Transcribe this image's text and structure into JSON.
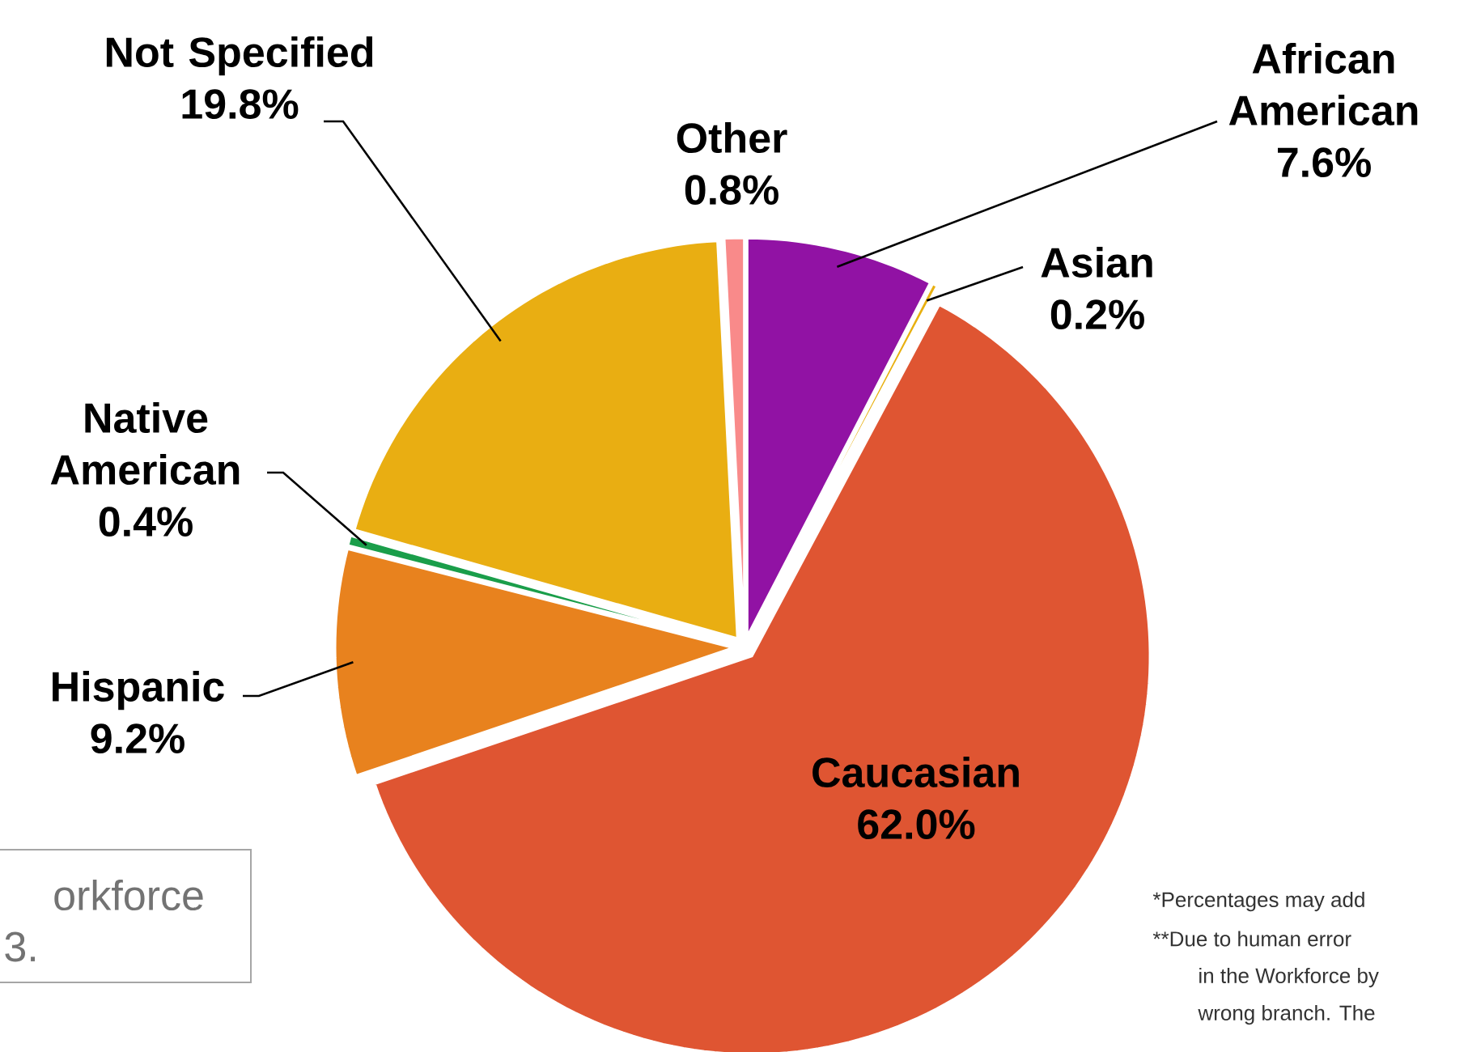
{
  "chart_data": {
    "type": "pie",
    "categories": [
      "African American",
      "Asian",
      "Caucasian",
      "Hispanic",
      "Native American",
      "Not Specified",
      "Other"
    ],
    "values": [
      7.6,
      0.2,
      62.0,
      9.2,
      0.4,
      19.8,
      0.8
    ],
    "value_labels": [
      "7.6%",
      "0.2%",
      "62.0%",
      "9.2%",
      "0.4%",
      "19.8%",
      "0.8%"
    ],
    "colors": [
      "#9112a4",
      "#e8b010",
      "#df5532",
      "#e8821e",
      "#1a9e4a",
      "#e9ae12",
      "#f98a8a"
    ],
    "annotations": [
      "orkforce",
      "3.",
      "*Percentages may add",
      "**Due to human error",
      "in the Workforce by",
      "wrong branch. The"
    ]
  }
}
